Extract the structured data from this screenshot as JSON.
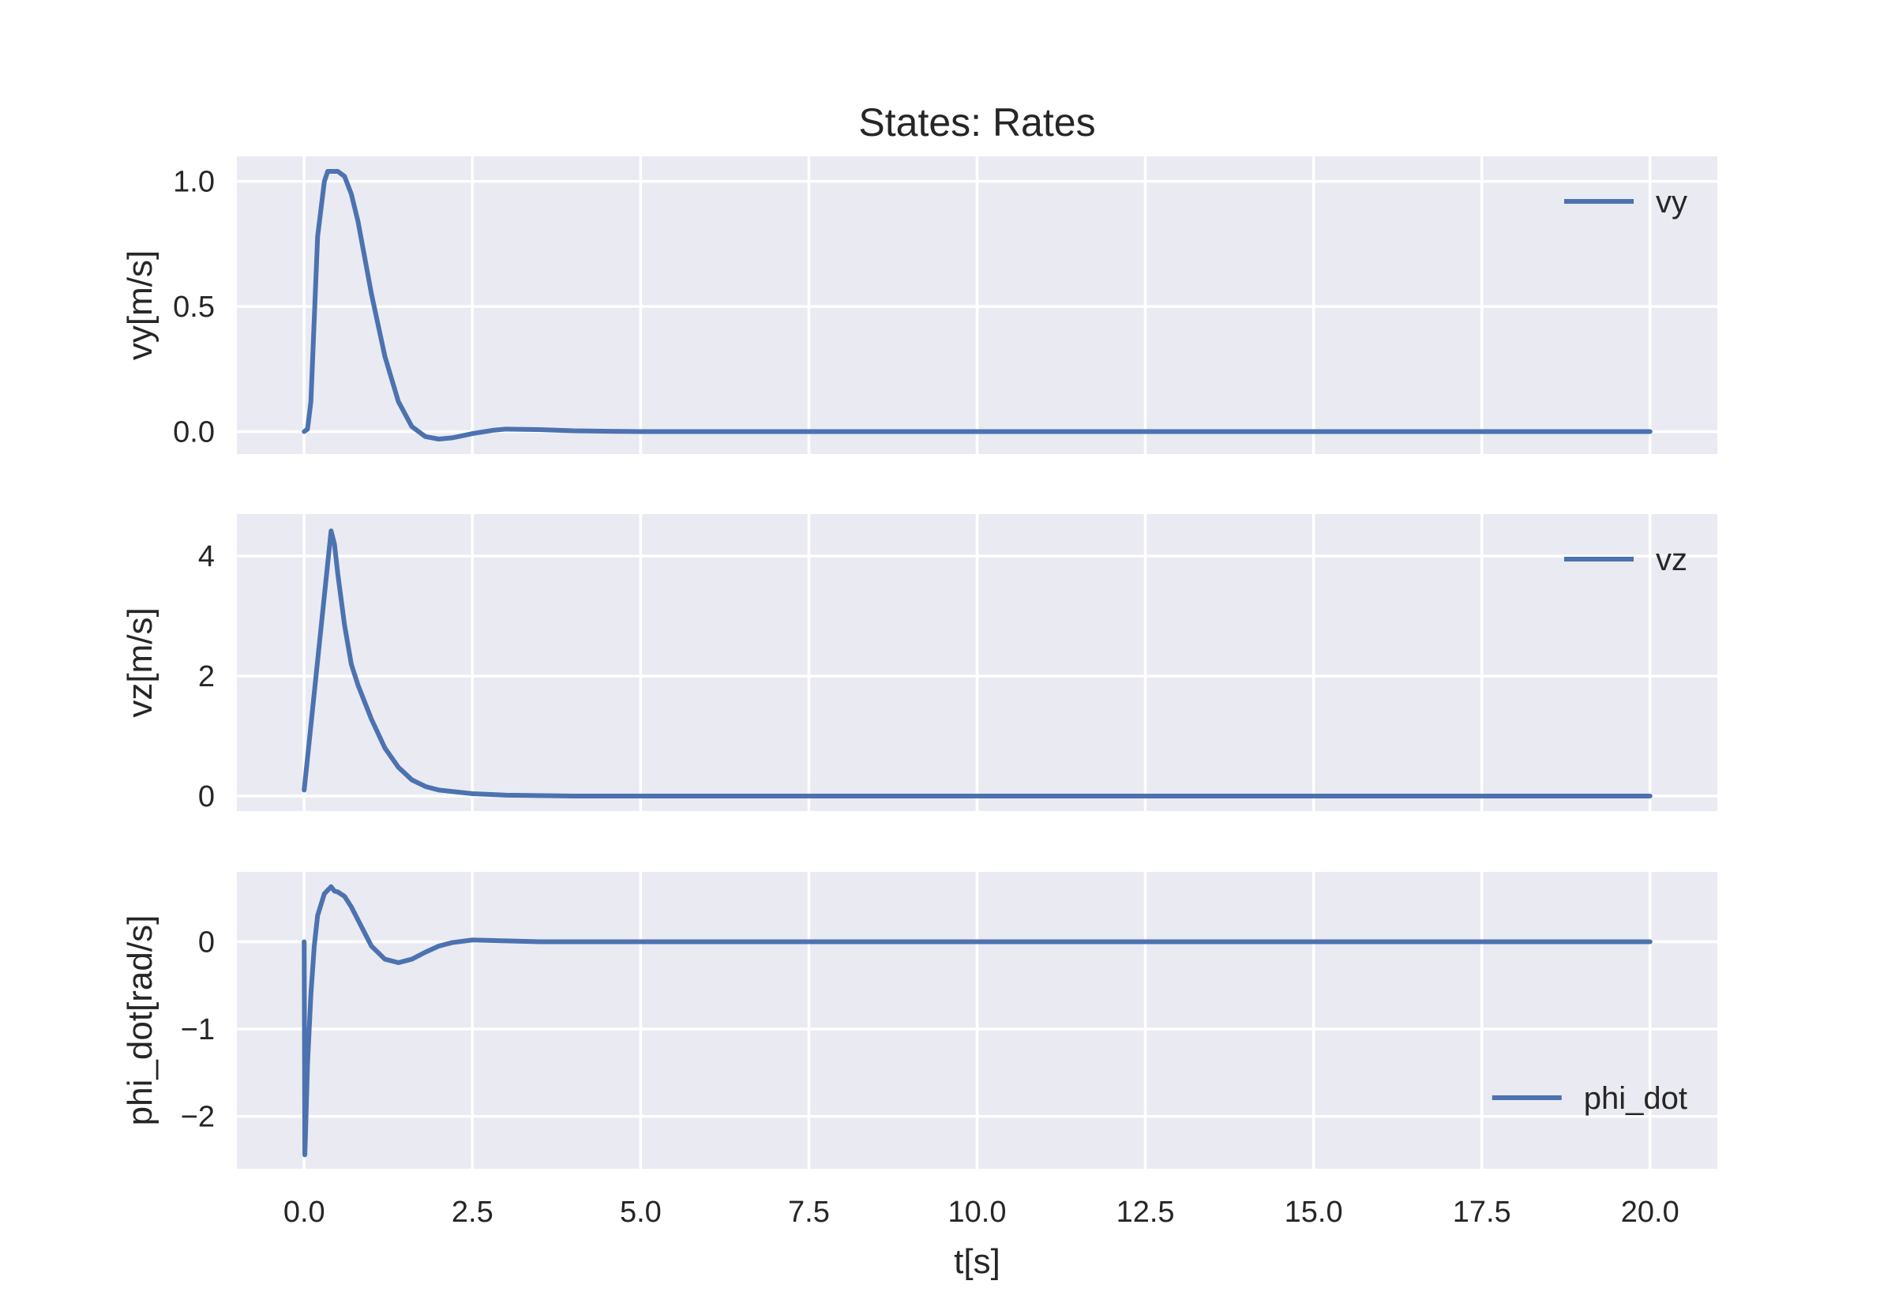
{
  "chart_data": {
    "type": "line",
    "title": "States: Rates",
    "xlabel": "t[s]",
    "xlim": [
      -1.0,
      21.0
    ],
    "xticks": [
      0.0,
      2.5,
      5.0,
      7.5,
      10.0,
      12.5,
      15.0,
      17.5,
      20.0
    ],
    "xtick_labels": [
      "0.0",
      "2.5",
      "5.0",
      "7.5",
      "10.0",
      "12.5",
      "15.0",
      "17.5",
      "20.0"
    ],
    "grid": true,
    "style": "seaborn-darkgrid",
    "line_color": "#4c72b0",
    "subplots": [
      {
        "name": "vy",
        "ylabel": "vy[m/s]",
        "ylim": [
          -0.09,
          1.1
        ],
        "yticks": [
          0.0,
          0.5,
          1.0
        ],
        "ytick_labels": [
          "0.0",
          "0.5",
          "1.0"
        ],
        "legend_position": "upper right",
        "series": [
          {
            "name": "vy",
            "x": [
              0,
              0.05,
              0.1,
              0.15,
              0.2,
              0.3,
              0.35,
              0.4,
              0.5,
              0.6,
              0.7,
              0.8,
              1.0,
              1.2,
              1.4,
              1.6,
              1.8,
              2.0,
              2.2,
              2.5,
              2.8,
              3.0,
              3.5,
              4.0,
              5.0,
              10.0,
              15.0,
              20.0
            ],
            "y": [
              0.0,
              0.01,
              0.12,
              0.45,
              0.78,
              1.0,
              1.04,
              1.04,
              1.04,
              1.02,
              0.95,
              0.84,
              0.55,
              0.3,
              0.12,
              0.02,
              -0.02,
              -0.03,
              -0.025,
              -0.008,
              0.005,
              0.01,
              0.008,
              0.003,
              0.0,
              0.0,
              0.0,
              0.0
            ]
          }
        ]
      },
      {
        "name": "vz",
        "ylabel": "vz[m/s]",
        "ylim": [
          -0.25,
          4.7
        ],
        "yticks": [
          0,
          2,
          4
        ],
        "ytick_labels": [
          "0",
          "2",
          "4"
        ],
        "legend_position": "upper right",
        "series": [
          {
            "name": "vz",
            "x": [
              0,
              0.4,
              0.45,
              0.5,
              0.6,
              0.7,
              0.8,
              1.0,
              1.2,
              1.4,
              1.6,
              1.8,
              2.0,
              2.5,
              3.0,
              4.0,
              5.0,
              10.0,
              15.0,
              20.0
            ],
            "y": [
              0.1,
              4.42,
              4.2,
              3.7,
              2.85,
              2.2,
              1.85,
              1.28,
              0.8,
              0.48,
              0.27,
              0.16,
              0.1,
              0.04,
              0.015,
              0.0,
              0.0,
              0.0,
              0.0,
              0.0
            ],
            "y_label_note": ""
          }
        ]
      },
      {
        "name": "phi_dot",
        "ylabel": "phi_dot[rad/s]",
        "ylim": [
          -2.6,
          0.8
        ],
        "yticks": [
          0,
          -1,
          -2
        ],
        "ytick_labels": [
          "0",
          "−1",
          "−2"
        ],
        "legend_position": "lower right",
        "series": [
          {
            "name": "phi_dot",
            "x": [
              0,
              0.01,
              0.02,
              0.05,
              0.1,
              0.15,
              0.2,
              0.3,
              0.4,
              0.45,
              0.5,
              0.6,
              0.7,
              0.8,
              1.0,
              1.2,
              1.4,
              1.6,
              1.8,
              2.0,
              2.2,
              2.5,
              3.0,
              3.5,
              4.0,
              5.0,
              10.0,
              15.0,
              20.0
            ],
            "y": [
              0.0,
              -2.44,
              -2.2,
              -1.4,
              -0.6,
              -0.05,
              0.3,
              0.55,
              0.63,
              0.58,
              0.57,
              0.52,
              0.4,
              0.25,
              -0.05,
              -0.2,
              -0.24,
              -0.2,
              -0.12,
              -0.05,
              -0.01,
              0.02,
              0.01,
              0.0,
              0.0,
              0.0,
              0.0,
              0.0,
              0.0
            ]
          }
        ]
      }
    ]
  }
}
